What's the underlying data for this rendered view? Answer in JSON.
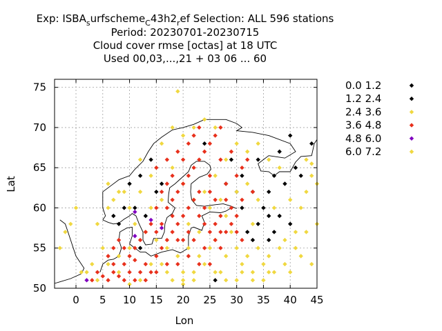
{
  "chart_data": {
    "type": "scatter",
    "title_lines": [
      "Exp: ISBA_surfscheme_C43h2_ref   Selection: ALL     596 stations",
      "Period: 20230701-20230715",
      "Cloud cover rmse [octas] at  18 UTC",
      "Used  00,03,...,21  + 03 06 ... 60"
    ],
    "xlabel": "Lon",
    "ylabel": "Lat",
    "xlim": [
      -4,
      45
    ],
    "ylim": [
      50,
      76
    ],
    "xticks": [
      0,
      5,
      10,
      15,
      20,
      25,
      30,
      35,
      40,
      45
    ],
    "yticks": [
      50,
      55,
      60,
      65,
      70,
      75
    ],
    "grid": true,
    "legend_position": "right",
    "series": [
      {
        "name": "0.0 1.2",
        "color": "#000000",
        "points": [
          [
            40,
            69
          ],
          [
            44,
            68
          ],
          [
            42,
            64
          ],
          [
            41,
            65
          ],
          [
            37,
            64
          ],
          [
            36,
            62
          ],
          [
            35,
            60
          ],
          [
            38,
            59
          ],
          [
            40,
            58
          ],
          [
            33,
            62
          ],
          [
            31,
            60
          ],
          [
            34,
            58
          ],
          [
            37,
            57
          ],
          [
            36,
            56
          ]
        ]
      },
      {
        "name": "1.2 2.4",
        "color": "#000000",
        "points": [
          [
            10,
            63
          ],
          [
            12,
            64
          ],
          [
            14,
            66
          ],
          [
            15,
            62
          ],
          [
            9,
            60
          ],
          [
            8,
            58
          ],
          [
            11,
            60
          ],
          [
            13,
            59
          ],
          [
            29,
            66
          ],
          [
            31,
            64
          ],
          [
            34,
            66
          ],
          [
            38,
            67
          ],
          [
            39,
            63
          ],
          [
            26,
            51
          ],
          [
            12,
            55
          ],
          [
            30,
            62
          ],
          [
            32,
            57
          ],
          [
            36,
            59
          ],
          [
            24,
            68
          ],
          [
            7,
            59
          ],
          [
            16,
            63
          ],
          [
            28,
            63
          ],
          [
            33,
            56
          ]
        ]
      },
      {
        "name": "2.4 3.6",
        "color": "#f0d840",
        "points": [
          [
            19,
            74.5
          ],
          [
            0,
            60
          ],
          [
            -1,
            58
          ],
          [
            2,
            52
          ],
          [
            4,
            51
          ],
          [
            6,
            53
          ],
          [
            8,
            52
          ],
          [
            10,
            50.5
          ],
          [
            12,
            51
          ],
          [
            14,
            53
          ],
          [
            17,
            52
          ],
          [
            20,
            51
          ],
          [
            22,
            52
          ],
          [
            24,
            53
          ],
          [
            27,
            52
          ],
          [
            30,
            51
          ],
          [
            33,
            52
          ],
          [
            35,
            53
          ],
          [
            37,
            52
          ],
          [
            40,
            52
          ],
          [
            42,
            54
          ],
          [
            44,
            53
          ],
          [
            34,
            55
          ],
          [
            36,
            54
          ],
          [
            32,
            54
          ],
          [
            30,
            55
          ],
          [
            28,
            54
          ],
          [
            26,
            56
          ],
          [
            38,
            55
          ],
          [
            35,
            51
          ],
          [
            31,
            53
          ],
          [
            29,
            57
          ],
          [
            33,
            58
          ],
          [
            37,
            60
          ],
          [
            40,
            61
          ],
          [
            42,
            60
          ],
          [
            43,
            62
          ],
          [
            41,
            57
          ],
          [
            39,
            56
          ],
          [
            21,
            58
          ],
          [
            23,
            57
          ],
          [
            25,
            60
          ],
          [
            27,
            61
          ],
          [
            28,
            59
          ],
          [
            24,
            62
          ],
          [
            26,
            64
          ],
          [
            28,
            66
          ],
          [
            30,
            68
          ],
          [
            32,
            67
          ],
          [
            34,
            68
          ],
          [
            36,
            66
          ],
          [
            38,
            65
          ],
          [
            16,
            68
          ],
          [
            18,
            70
          ],
          [
            20,
            69
          ],
          [
            22,
            70
          ],
          [
            24,
            71
          ],
          [
            26,
            70
          ],
          [
            12,
            66
          ],
          [
            14,
            64
          ],
          [
            9,
            62
          ],
          [
            7,
            61
          ],
          [
            6,
            63
          ],
          [
            11,
            58
          ],
          [
            13,
            57
          ],
          [
            15,
            56
          ],
          [
            17,
            55
          ],
          [
            19,
            54
          ],
          [
            21,
            55
          ],
          [
            23,
            54
          ],
          [
            25,
            55
          ],
          [
            8,
            54
          ],
          [
            10,
            55
          ],
          [
            5,
            55
          ],
          [
            3,
            53
          ],
          [
            1,
            52
          ],
          [
            -2,
            57
          ],
          [
            -3,
            55
          ],
          [
            43,
            66
          ],
          [
            44,
            64
          ],
          [
            30,
            62
          ],
          [
            32,
            63
          ],
          [
            34,
            61
          ],
          [
            22,
            61
          ],
          [
            20,
            63
          ],
          [
            18,
            65
          ],
          [
            16,
            61
          ],
          [
            14,
            60
          ],
          [
            12,
            62
          ],
          [
            10,
            60
          ],
          [
            8,
            62
          ],
          [
            6,
            60
          ],
          [
            4,
            58
          ],
          [
            26,
            52
          ],
          [
            28,
            51
          ],
          [
            31,
            52
          ],
          [
            33,
            51
          ],
          [
            36,
            52
          ],
          [
            39,
            53
          ],
          [
            41,
            55
          ],
          [
            43,
            57
          ],
          [
            45,
            58
          ],
          [
            20,
            52
          ],
          [
            22,
            51
          ],
          [
            18,
            51
          ],
          [
            16,
            53
          ]
        ]
      },
      {
        "name": "3.6 4.8",
        "color": "#e8301c",
        "points": [
          [
            5,
            51.5
          ],
          [
            6,
            51
          ],
          [
            7,
            52
          ],
          [
            8,
            51.5
          ],
          [
            9,
            53
          ],
          [
            10,
            52
          ],
          [
            11,
            53.5
          ],
          [
            12,
            52
          ],
          [
            13,
            53
          ],
          [
            14,
            52
          ],
          [
            15,
            54
          ],
          [
            16,
            55
          ],
          [
            17,
            56
          ],
          [
            18,
            57
          ],
          [
            19,
            58
          ],
          [
            20,
            59
          ],
          [
            21,
            60
          ],
          [
            22,
            61
          ],
          [
            23,
            59
          ],
          [
            24,
            58
          ],
          [
            25,
            57
          ],
          [
            26,
            56
          ],
          [
            27,
            55
          ],
          [
            28,
            57
          ],
          [
            29,
            58
          ],
          [
            30,
            59
          ],
          [
            17,
            60
          ],
          [
            18,
            61
          ],
          [
            19,
            62
          ],
          [
            20,
            63
          ],
          [
            21,
            64
          ],
          [
            22,
            65
          ],
          [
            23,
            66
          ],
          [
            24,
            67
          ],
          [
            25,
            68
          ],
          [
            26,
            69
          ],
          [
            27,
            70
          ],
          [
            25,
            64
          ],
          [
            27,
            66
          ],
          [
            29,
            67
          ],
          [
            28,
            63
          ],
          [
            30,
            64
          ],
          [
            31,
            65
          ],
          [
            32,
            66
          ],
          [
            23,
            62
          ],
          [
            24,
            60
          ],
          [
            26,
            61
          ],
          [
            28,
            61
          ],
          [
            21,
            57
          ],
          [
            22,
            56
          ],
          [
            20,
            56
          ],
          [
            19,
            56
          ],
          [
            18,
            59
          ],
          [
            16,
            58
          ],
          [
            15,
            57
          ],
          [
            14,
            58
          ],
          [
            13,
            57
          ],
          [
            12,
            56
          ],
          [
            11,
            55
          ],
          [
            10,
            54
          ],
          [
            9,
            55
          ],
          [
            8,
            56
          ],
          [
            7,
            55
          ],
          [
            6,
            54
          ],
          [
            4,
            52
          ],
          [
            3,
            51
          ],
          [
            15,
            60
          ],
          [
            16,
            62
          ],
          [
            17,
            63
          ],
          [
            18,
            64
          ],
          [
            20,
            66
          ],
          [
            21,
            68
          ],
          [
            22,
            69
          ],
          [
            23,
            70
          ],
          [
            19,
            67
          ],
          [
            17,
            66
          ],
          [
            15,
            65
          ],
          [
            25,
            62
          ],
          [
            27,
            59
          ],
          [
            29,
            60
          ],
          [
            31,
            61
          ],
          [
            33,
            62
          ],
          [
            24,
            55
          ],
          [
            25,
            53
          ],
          [
            23,
            53
          ],
          [
            21,
            54
          ],
          [
            19,
            53
          ],
          [
            17,
            53
          ],
          [
            15,
            52
          ],
          [
            13,
            51
          ],
          [
            11,
            51
          ],
          [
            9,
            51
          ],
          [
            7,
            53
          ],
          [
            26,
            58
          ],
          [
            27,
            57
          ],
          [
            30,
            57
          ],
          [
            31,
            56
          ]
        ]
      },
      {
        "name": "4.8 6.0",
        "color": "#8000c0",
        "points": [
          [
            2,
            51
          ],
          [
            11,
            56.5
          ],
          [
            14,
            58.5
          ],
          [
            16,
            57.5
          ],
          [
            11,
            59.5
          ]
        ]
      },
      {
        "name": "6.0 7.2",
        "color": "#f0d840",
        "points": [
          [
            44,
            65.5
          ],
          [
            45,
            63
          ],
          [
            20,
            50.5
          ]
        ]
      }
    ]
  }
}
